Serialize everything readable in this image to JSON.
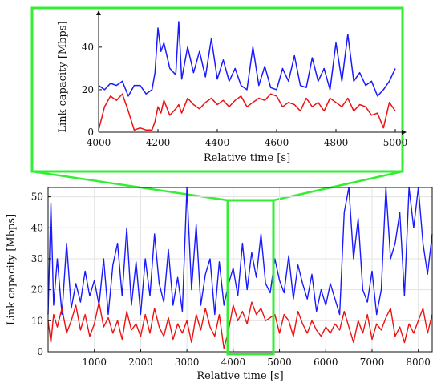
{
  "chart_data": [
    {
      "type": "line",
      "panel": "inset",
      "xlabel": "Relative time [s]",
      "ylabel": "Link capacity [Mbps]",
      "xlim": [
        4000,
        5000
      ],
      "ylim": [
        0,
        52
      ],
      "xticks": [
        "4000",
        "4200",
        "4400",
        "4600",
        "4800",
        "5000"
      ],
      "yticks": [
        "0",
        "20",
        "40"
      ],
      "grid": false,
      "series": [
        {
          "color": "#1a1aff",
          "x": [
            4000,
            4020,
            4040,
            4060,
            4080,
            4100,
            4120,
            4140,
            4160,
            4180,
            4190,
            4200,
            4210,
            4220,
            4240,
            4260,
            4270,
            4280,
            4300,
            4320,
            4340,
            4360,
            4380,
            4400,
            4420,
            4440,
            4460,
            4480,
            4500,
            4520,
            4540,
            4560,
            4580,
            4600,
            4620,
            4640,
            4660,
            4680,
            4700,
            4720,
            4740,
            4760,
            4780,
            4800,
            4820,
            4840,
            4860,
            4880,
            4900,
            4920,
            4940,
            4960,
            4980,
            5000
          ],
          "y": [
            22,
            20,
            23,
            22,
            24,
            17,
            22,
            22,
            18,
            20,
            28,
            49,
            38,
            42,
            30,
            27,
            52,
            25,
            40,
            28,
            38,
            26,
            44,
            25,
            34,
            24,
            30,
            22,
            20,
            40,
            22,
            31,
            21,
            20,
            30,
            24,
            36,
            22,
            21,
            35,
            24,
            30,
            20,
            42,
            24,
            46,
            24,
            28,
            22,
            24,
            17,
            20,
            24,
            30
          ]
        },
        {
          "color": "#ee1111",
          "x": [
            4000,
            4020,
            4040,
            4060,
            4080,
            4100,
            4120,
            4140,
            4160,
            4180,
            4190,
            4200,
            4210,
            4220,
            4240,
            4260,
            4270,
            4280,
            4300,
            4320,
            4340,
            4360,
            4380,
            4400,
            4420,
            4440,
            4460,
            4480,
            4500,
            4520,
            4540,
            4560,
            4580,
            4600,
            4620,
            4640,
            4660,
            4680,
            4700,
            4720,
            4740,
            4760,
            4780,
            4800,
            4820,
            4840,
            4860,
            4880,
            4900,
            4920,
            4940,
            4960,
            4980,
            5000
          ],
          "y": [
            1,
            12,
            17,
            15,
            18,
            10,
            1,
            2,
            1,
            1,
            5,
            12,
            9,
            15,
            8,
            11,
            13,
            9,
            16,
            13,
            11,
            14,
            16,
            13,
            15,
            12,
            15,
            17,
            12,
            14,
            16,
            15,
            18,
            17,
            12,
            14,
            13,
            10,
            16,
            12,
            14,
            10,
            16,
            14,
            12,
            16,
            10,
            13,
            12,
            8,
            9,
            2,
            14,
            10
          ]
        }
      ]
    },
    {
      "type": "line",
      "panel": "main",
      "xlabel": "Relative time [s]",
      "ylabel": "Link capacity [Mbps]",
      "xlim": [
        0,
        8300
      ],
      "ylim": [
        0,
        53
      ],
      "xticks": [
        "1000",
        "2000",
        "3000",
        "4000",
        "5000",
        "6000",
        "7000",
        "8000"
      ],
      "yticks": [
        "0",
        "10",
        "20",
        "30",
        "40",
        "50"
      ],
      "grid": true,
      "series": [
        {
          "color": "#1a1aff",
          "x": [
            0,
            60,
            120,
            200,
            300,
            400,
            500,
            600,
            700,
            800,
            900,
            1000,
            1100,
            1200,
            1300,
            1400,
            1500,
            1600,
            1700,
            1800,
            1900,
            2000,
            2100,
            2200,
            2300,
            2400,
            2500,
            2600,
            2700,
            2800,
            2900,
            3000,
            3100,
            3200,
            3300,
            3400,
            3500,
            3600,
            3700,
            3800,
            3900,
            4000,
            4100,
            4200,
            4300,
            4400,
            4500,
            4600,
            4700,
            4800,
            4900,
            5000,
            5100,
            5200,
            5300,
            5400,
            5500,
            5600,
            5700,
            5800,
            5900,
            6000,
            6100,
            6200,
            6300,
            6400,
            6500,
            6600,
            6700,
            6800,
            6900,
            7000,
            7100,
            7200,
            7300,
            7400,
            7500,
            7600,
            7700,
            7800,
            7900,
            8000,
            8100,
            8200,
            8300
          ],
          "y": [
            12,
            48,
            15,
            30,
            12,
            35,
            14,
            22,
            16,
            26,
            18,
            23,
            15,
            30,
            12,
            28,
            35,
            18,
            40,
            15,
            29,
            12,
            30,
            18,
            38,
            22,
            16,
            33,
            15,
            24,
            13,
            53,
            20,
            41,
            15,
            25,
            30,
            12,
            29,
            15,
            22,
            27,
            18,
            35,
            20,
            32,
            24,
            38,
            22,
            19,
            30,
            23,
            19,
            31,
            17,
            28,
            22,
            17,
            25,
            13,
            20,
            15,
            22,
            17,
            12,
            45,
            53,
            30,
            43,
            20,
            16,
            26,
            12,
            20,
            53,
            30,
            35,
            45,
            18,
            53,
            40,
            53,
            35,
            25,
            38
          ]
        },
        {
          "color": "#ee1111",
          "x": [
            0,
            60,
            120,
            200,
            300,
            400,
            500,
            600,
            700,
            800,
            900,
            1000,
            1100,
            1200,
            1300,
            1400,
            1500,
            1600,
            1700,
            1800,
            1900,
            2000,
            2100,
            2200,
            2300,
            2400,
            2500,
            2600,
            2700,
            2800,
            2900,
            3000,
            3100,
            3200,
            3300,
            3400,
            3500,
            3600,
            3700,
            3800,
            3900,
            4000,
            4100,
            4200,
            4300,
            4400,
            4500,
            4600,
            4700,
            4800,
            4900,
            5000,
            5100,
            5200,
            5300,
            5400,
            5500,
            5600,
            5700,
            5800,
            5900,
            6000,
            6100,
            6200,
            6300,
            6400,
            6500,
            6600,
            6700,
            6800,
            6900,
            7000,
            7100,
            7200,
            7300,
            7400,
            7500,
            7600,
            7700,
            7800,
            7900,
            8000,
            8100,
            8200,
            8300
          ],
          "y": [
            10,
            3,
            12,
            8,
            14,
            6,
            10,
            15,
            7,
            12,
            5,
            9,
            16,
            8,
            11,
            6,
            10,
            4,
            13,
            7,
            9,
            5,
            12,
            6,
            14,
            8,
            5,
            11,
            4,
            9,
            6,
            10,
            3,
            12,
            7,
            14,
            8,
            5,
            12,
            1,
            7,
            15,
            10,
            13,
            9,
            16,
            12,
            14,
            10,
            11,
            12,
            6,
            12,
            10,
            5,
            13,
            9,
            6,
            10,
            7,
            5,
            8,
            6,
            9,
            7,
            13,
            8,
            3,
            10,
            6,
            12,
            4,
            9,
            7,
            11,
            14,
            5,
            8,
            3,
            9,
            6,
            10,
            14,
            6,
            12
          ]
        }
      ]
    }
  ]
}
